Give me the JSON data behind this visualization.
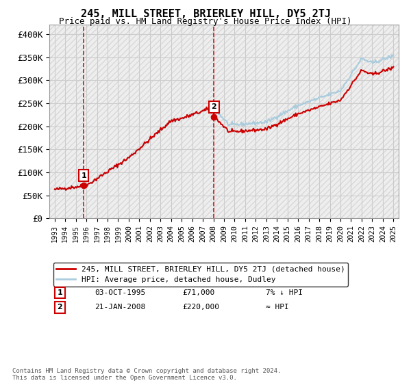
{
  "title": "245, MILL STREET, BRIERLEY HILL, DY5 2TJ",
  "subtitle": "Price paid vs. HM Land Registry's House Price Index (HPI)",
  "legend_line1": "245, MILL STREET, BRIERLEY HILL, DY5 2TJ (detached house)",
  "legend_line2": "HPI: Average price, detached house, Dudley",
  "annotation1_date": "03-OCT-1995",
  "annotation1_price": "£71,000",
  "annotation1_hpi": "7% ↓ HPI",
  "annotation2_date": "21-JAN-2008",
  "annotation2_price": "£220,000",
  "annotation2_hpi": "≈ HPI",
  "footer": "Contains HM Land Registry data © Crown copyright and database right 2024.\nThis data is licensed under the Open Government Licence v3.0.",
  "sale1_year": 1995.75,
  "sale1_price": 71000,
  "sale2_year": 2008.05,
  "sale2_price": 220000,
  "hpi_color": "#aaccdd",
  "price_color": "#cc0000",
  "background_color": "#ffffff",
  "grid_color": "#cccccc",
  "ylim": [
    0,
    420000
  ],
  "yticks": [
    0,
    50000,
    100000,
    150000,
    200000,
    250000,
    300000,
    350000,
    400000
  ],
  "ytick_labels": [
    "£0",
    "£50K",
    "£100K",
    "£150K",
    "£200K",
    "£250K",
    "£300K",
    "£350K",
    "£400K"
  ],
  "xlim_start": 1992.5,
  "xlim_end": 2025.5,
  "xticks": [
    1993,
    1994,
    1995,
    1996,
    1997,
    1998,
    1999,
    2000,
    2001,
    2002,
    2003,
    2004,
    2005,
    2006,
    2007,
    2008,
    2009,
    2010,
    2011,
    2012,
    2013,
    2014,
    2015,
    2016,
    2017,
    2018,
    2019,
    2020,
    2021,
    2022,
    2023,
    2024,
    2025
  ]
}
